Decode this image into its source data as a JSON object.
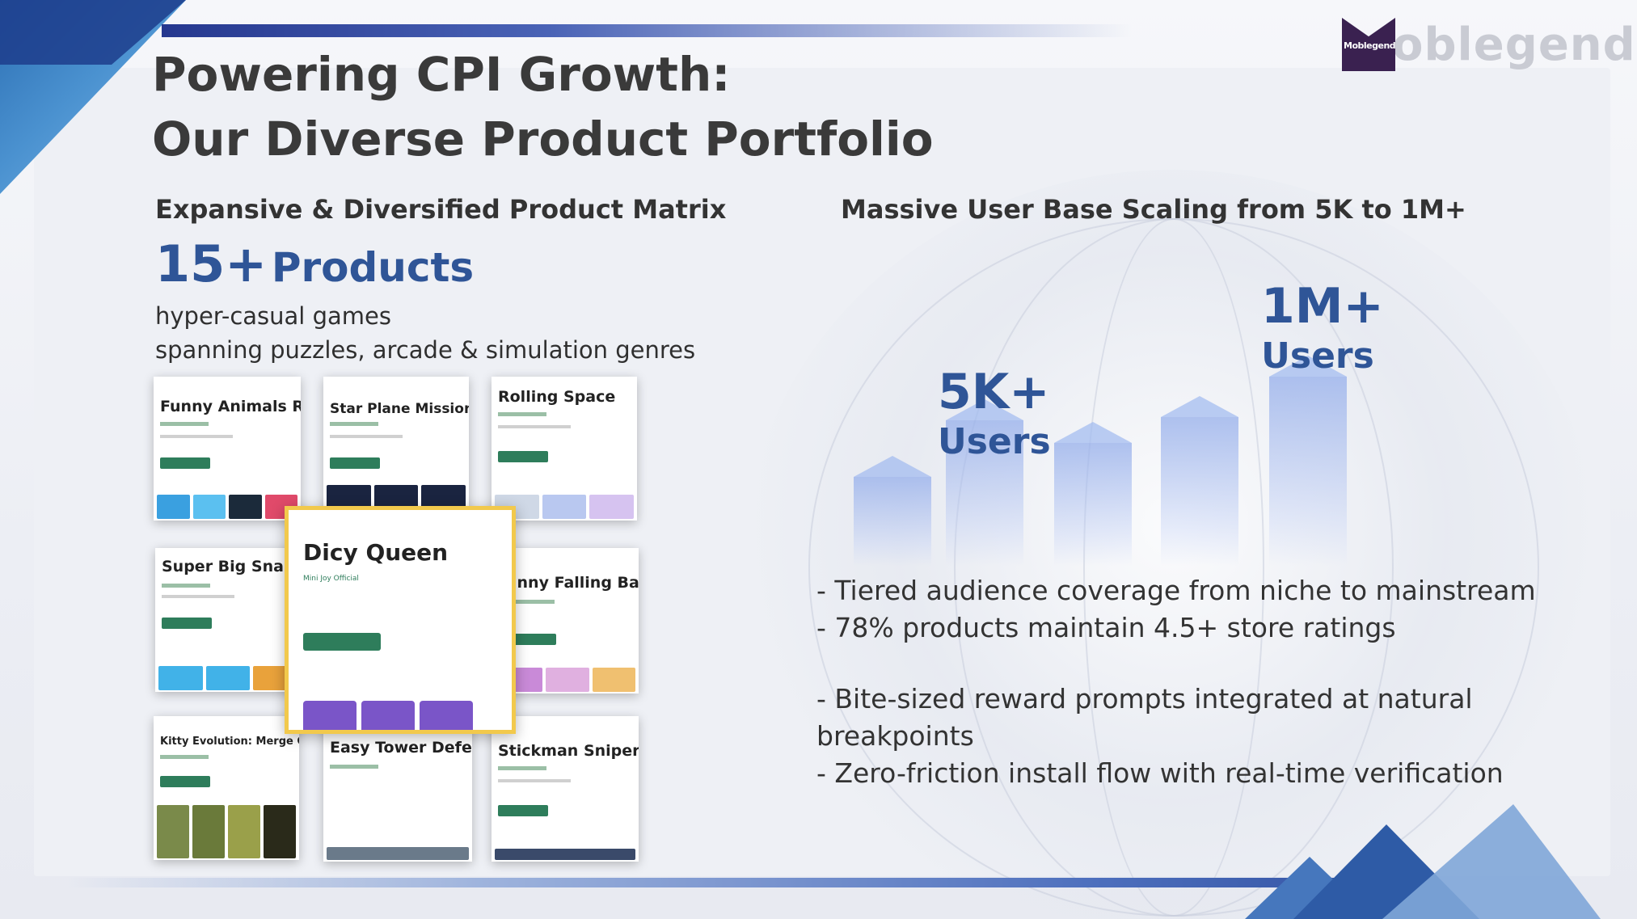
{
  "brand": {
    "logo_mark_text": "Moblegend",
    "logo_text": "oblegend"
  },
  "title": {
    "line1": "Powering CPI Growth:",
    "line2": "Our Diverse Product Portfolio"
  },
  "left": {
    "heading": "Expansive & Diversified Product Matrix",
    "count": "15+",
    "count_label": "Products",
    "desc_line1": "hyper-casual games",
    "desc_line2": "spanning puzzles, arcade & simulation genres",
    "products": [
      "Funny Animals Runn",
      "Star Plane Mission",
      "Rolling Space",
      "Super Big Snak",
      "Dicy Queen",
      "unny Falling Ball",
      "Kitty Evolution: Merge Game",
      "Easy Tower Defens",
      "Stickman Sniper Sim"
    ],
    "featured_developer": "Mini Joy Official"
  },
  "right": {
    "heading": "Massive User Base Scaling from 5K to 1M+",
    "stat_low_value": "5K+",
    "stat_low_unit": "Users",
    "stat_high_value": "1M+",
    "stat_high_unit": "Users",
    "bullets": [
      "- Tiered audience coverage from niche to mainstream",
      "- 78% products maintain 4.5+ store ratings",
      "- Bite-sized reward prompts integrated at natural",
      "breakpoints",
      "- Zero-friction install flow with real-time verification"
    ]
  },
  "colors": {
    "accent": "#2f5597",
    "install_green": "#2e7d5b",
    "highlight_border": "#f2c94c"
  }
}
